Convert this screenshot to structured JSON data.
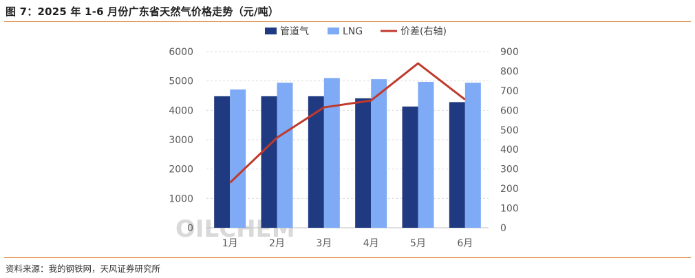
{
  "header": {
    "title": "图 7：2025 年 1-6 月份广东省天然气价格走势（元/吨）"
  },
  "footer": {
    "source": "资料来源：我的钢铁网，天风证券研究所"
  },
  "watermark": {
    "text": "OILCHEM"
  },
  "colors": {
    "pipeline": "#1f3a80",
    "lng": "#7faaf5",
    "spread": "#c0392b",
    "rule": "#e27a2b"
  },
  "chart_data": {
    "type": "bar",
    "categories": [
      "1月",
      "2月",
      "3月",
      "4月",
      "5月",
      "6月"
    ],
    "series": [
      {
        "name": "管道气",
        "type": "bar",
        "axis": "left",
        "values": [
          4480,
          4480,
          4480,
          4410,
          4130,
          4280
        ]
      },
      {
        "name": "LNG",
        "type": "bar",
        "axis": "left",
        "values": [
          4710,
          4940,
          5100,
          5060,
          4970,
          4940
        ]
      },
      {
        "name": "价差(右轴)",
        "type": "line",
        "axis": "right",
        "values": [
          230,
          460,
          615,
          650,
          840,
          655
        ]
      }
    ],
    "y_left": {
      "min": 0,
      "max": 6000,
      "ticks": [
        0,
        1000,
        2000,
        3000,
        4000,
        5000,
        6000
      ]
    },
    "y_right": {
      "min": 0,
      "max": 900,
      "ticks": [
        0,
        100,
        200,
        300,
        400,
        500,
        600,
        700,
        800,
        900
      ]
    },
    "grid": true,
    "legend_position": "top-center"
  }
}
